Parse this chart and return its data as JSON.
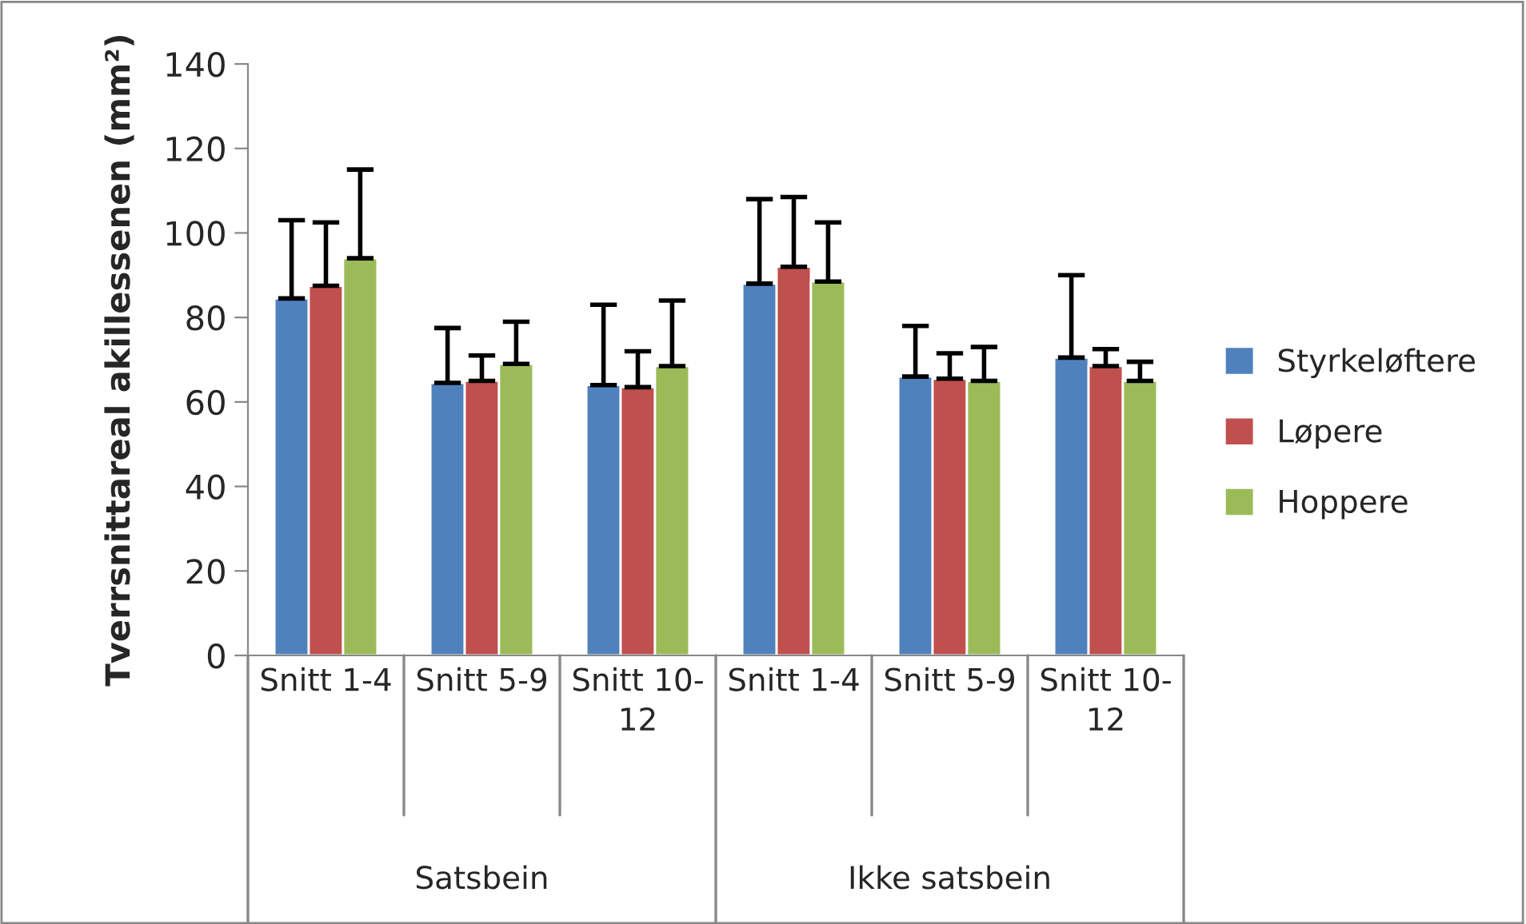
{
  "chart_data": {
    "type": "bar",
    "ylabel": "Tverrsnittareal akillessenen (mm²)",
    "categories": [
      "Snitt 1-4",
      "Snitt 5-9",
      "Snitt 10-12",
      "Snitt 1-4",
      "Snitt 5-9",
      "Snitt 10-12"
    ],
    "series": [
      {
        "name": "Styrkeløftere",
        "color": "#4f81bd",
        "values": [
          84.5,
          64.5,
          64,
          88,
          66,
          70.5
        ],
        "errors": [
          [
            84.5,
            103
          ],
          [
            64.5,
            77.5
          ],
          [
            64,
            83
          ],
          [
            88,
            108
          ],
          [
            66,
            78
          ],
          [
            70.5,
            90
          ]
        ]
      },
      {
        "name": "Løpere",
        "color": "#c0504d",
        "values": [
          87.5,
          65,
          63.5,
          92,
          65.5,
          68.5
        ],
        "errors": [
          [
            87.5,
            102.5
          ],
          [
            65,
            71
          ],
          [
            63.5,
            72
          ],
          [
            92,
            108.5
          ],
          [
            65.5,
            71.5
          ],
          [
            68.5,
            72.5
          ]
        ]
      },
      {
        "name": "Hoppere",
        "color": "#9bbb59",
        "values": [
          94,
          69,
          68.5,
          88.5,
          65,
          65
        ],
        "errors": [
          [
            94,
            115
          ],
          [
            69,
            79
          ],
          [
            68.5,
            84
          ],
          [
            88.5,
            102.5
          ],
          [
            65,
            73
          ],
          [
            65,
            69.5
          ]
        ]
      }
    ],
    "annotations": [
      "Satsbein",
      "Ikke satsbein"
    ],
    "ylim": [
      0,
      140
    ],
    "yticks": [
      0,
      20,
      40,
      60,
      80,
      100,
      120,
      140
    ],
    "grid": false,
    "legend": "right"
  }
}
